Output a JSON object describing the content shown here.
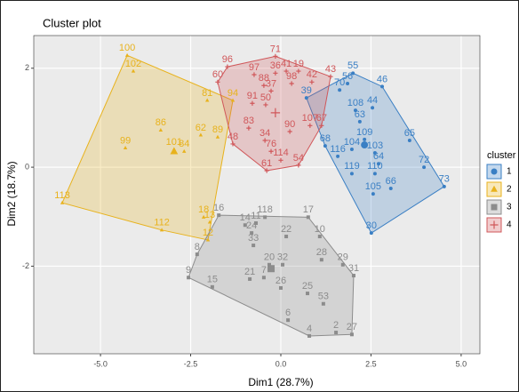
{
  "chart_data": {
    "type": "scatter",
    "title": "Cluster plot",
    "x_label": "Dim1 (28.7%)",
    "y_label": "Dim2 (18.7%)",
    "legend_title": "cluster",
    "legend": "right",
    "grid": true,
    "xlim": [
      -6.85,
      5.52
    ],
    "ylim": [
      -3.77,
      2.66
    ],
    "xticks": [
      {
        "value": -5,
        "label": "-5.0"
      },
      {
        "value": -2.5,
        "label": "-2.5"
      },
      {
        "value": 0,
        "label": "0.0"
      },
      {
        "value": 2.5,
        "label": "2.5"
      },
      {
        "value": 5,
        "label": "5.0"
      }
    ],
    "yticks": [
      -2,
      0,
      2
    ],
    "series": [
      {
        "name": "1",
        "color": "#3a7fc4",
        "shape": "circle",
        "labels": [
          "55",
          "46",
          "56",
          "70",
          "108",
          "44",
          "63",
          "68",
          "116",
          "104",
          "109",
          "103",
          "64",
          "119",
          "110",
          "105",
          "66",
          "65",
          "72",
          "73",
          "30",
          "39"
        ],
        "x": [
          2.0,
          2.81,
          1.85,
          1.63,
          2.07,
          2.54,
          2.19,
          1.23,
          1.58,
          1.97,
          2.32,
          2.61,
          2.71,
          1.97,
          2.61,
          2.56,
          3.05,
          3.57,
          3.97,
          4.53,
          2.51,
          0.71
        ],
        "y": [
          1.9,
          1.63,
          1.69,
          1.56,
          1.15,
          1.2,
          0.92,
          0.43,
          0.22,
          0.36,
          0.56,
          0.29,
          0.07,
          -0.13,
          -0.13,
          -0.54,
          -0.43,
          0.54,
          0,
          -0.39,
          -1.33,
          1.4
        ],
        "center": {
          "x": 2.32,
          "y": 0.45
        }
      },
      {
        "name": "2",
        "color": "#e8b21c",
        "shape": "triangle",
        "labels": [
          "100",
          "102",
          "86",
          "99",
          "101",
          "84",
          "62",
          "89",
          "113",
          "112",
          "18",
          "12",
          "13",
          "81",
          "94"
        ],
        "x": [
          -4.26,
          -4.09,
          -3.33,
          -4.31,
          -2.96,
          -2.68,
          -2.22,
          -1.75,
          -6.06,
          -3.3,
          -2.14,
          -2.02,
          -1.97,
          -2.04,
          -1.33
        ],
        "y": [
          2.26,
          1.94,
          0.75,
          0.39,
          0.36,
          0.32,
          0.65,
          0.61,
          -0.72,
          -1.27,
          -1.01,
          -1.47,
          -1.11,
          1.35,
          1.35
        ],
        "center": {
          "x": -2.96,
          "y": 0.32
        }
      },
      {
        "name": "3",
        "color": "#8c8c8c",
        "shape": "square",
        "labels": [
          "16",
          "14",
          "11",
          "118",
          "17",
          "22",
          "10",
          "33",
          "24",
          "28",
          "20",
          "32",
          "9",
          "15",
          "21",
          "7",
          "26",
          "25",
          "53",
          "29",
          "31",
          "6",
          "8",
          "4",
          "2",
          "27"
        ],
        "x": [
          -1.72,
          -0.99,
          -0.69,
          -0.44,
          0.76,
          0.15,
          1.08,
          -0.76,
          -0.81,
          1.13,
          -0.32,
          0.05,
          -2.56,
          -1.9,
          -0.86,
          -0.47,
          0,
          0.74,
          1.18,
          1.72,
          2.02,
          0.2,
          -2.32,
          0.79,
          1.53,
          1.97
        ],
        "y": [
          -0.97,
          -1.17,
          -1.13,
          -1.01,
          -1.01,
          -1.4,
          -1.4,
          -1.58,
          -1.33,
          -1.87,
          -1.97,
          -1.97,
          -2.23,
          -2.42,
          -2.26,
          -2.23,
          -2.44,
          -2.55,
          -2.76,
          -1.97,
          -2.19,
          -3.09,
          -1.76,
          -3.41,
          -3.34,
          -3.38
        ],
        "center": {
          "x": -0.27,
          "y": -2.05
        }
      },
      {
        "name": "4",
        "color": "#d0575a",
        "shape": "cross",
        "labels": [
          "71",
          "96",
          "97",
          "60",
          "36",
          "41",
          "19",
          "43",
          "88",
          "98",
          "42",
          "37",
          "91",
          "50",
          "83",
          "34",
          "48",
          "76",
          "114",
          "54",
          "61",
          "107",
          "67",
          "90"
        ],
        "x": [
          -0.15,
          -1.48,
          -0.74,
          -1.75,
          -0.15,
          0.15,
          0.49,
          1.38,
          -0.47,
          0.3,
          0.86,
          -0.27,
          -0.79,
          -0.42,
          -0.89,
          -0.44,
          -1.33,
          -0.27,
          0,
          0.49,
          -0.39,
          0.81,
          1.13,
          0.25
        ],
        "y": [
          2.24,
          2.03,
          1.87,
          1.72,
          1.9,
          1.94,
          1.94,
          1.83,
          1.65,
          1.69,
          1.72,
          1.54,
          1.29,
          1.26,
          0.79,
          0.54,
          0.47,
          0.32,
          0.14,
          0.04,
          -0.07,
          0.84,
          0.84,
          0.72
        ],
        "center": {
          "x": -0.15,
          "y": 1.1
        }
      }
    ]
  }
}
